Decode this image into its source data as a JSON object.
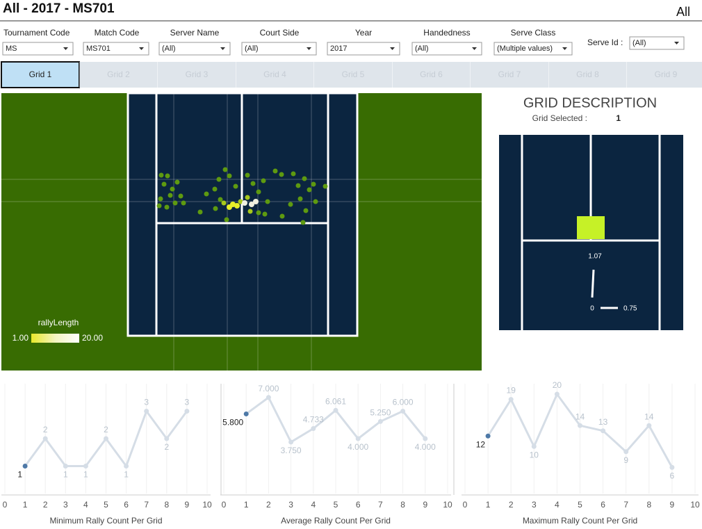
{
  "header": {
    "title": "All -  2017 -  MS701",
    "right": "All"
  },
  "filters": [
    {
      "label": "Tournament Code",
      "value": "MS"
    },
    {
      "label": "Match Code",
      "value": "MS701"
    },
    {
      "label": "Server Name",
      "value": "(All)"
    },
    {
      "label": "Court Side",
      "value": "(All)"
    },
    {
      "label": "Year",
      "value": "2017"
    },
    {
      "label": "Handedness",
      "value": "(All)"
    },
    {
      "label": "Serve Class",
      "value": "(Multiple values)"
    },
    {
      "label": "Serve Id :",
      "value": "(All)"
    }
  ],
  "tabs": [
    "Grid 1",
    "Grid 2",
    "Grid 3",
    "Grid 4",
    "Grid 5",
    "Grid 6",
    "Grid 7",
    "Grid 8",
    "Grid 9"
  ],
  "legend": {
    "title": "rallyLength",
    "min": "1.00",
    "max": "20.00"
  },
  "grid_description": {
    "title": "GRID DESCRIPTION",
    "selected_label": "Grid Selected :",
    "selected": "1",
    "labels": [
      "1.07",
      "0",
      "0.75"
    ]
  },
  "chart_data": [
    {
      "type": "line",
      "title": "Minimum Rally Count Per Grid",
      "x": [
        1,
        2,
        3,
        4,
        5,
        6,
        7,
        8,
        9
      ],
      "series": [
        {
          "name": null,
          "color": "#d5dde6",
          "values": [
            1,
            2,
            1,
            1,
            2,
            1,
            3,
            2,
            3
          ]
        }
      ],
      "highlight_x": 1,
      "highlight_color": "#4e79a7",
      "xlim": [
        0,
        10
      ],
      "xticks": [
        0,
        1,
        2,
        3,
        4,
        5,
        6,
        7,
        8,
        9,
        10
      ],
      "ylim": [
        0,
        4
      ]
    },
    {
      "type": "line",
      "title": "Average Rally Count Per Grid",
      "x": [
        1,
        2,
        3,
        4,
        5,
        6,
        7,
        8,
        9
      ],
      "series": [
        {
          "name": null,
          "color": "#d5dde6",
          "values": [
            5.8,
            7.0,
            3.75,
            4.733,
            6.061,
            4.0,
            5.25,
            6.0,
            4.0
          ],
          "value_labels": [
            "5.800",
            "7.000",
            "3.750",
            "4.733",
            "6.061",
            "4.000",
            "5.250",
            "6.000",
            "4.000"
          ]
        }
      ],
      "highlight_x": 1,
      "highlight_color": "#4e79a7",
      "xlim": [
        0,
        10
      ],
      "xticks": [
        0,
        1,
        2,
        3,
        4,
        5,
        6,
        7,
        8,
        9,
        10
      ],
      "ylim": [
        0,
        8
      ]
    },
    {
      "type": "line",
      "title": "Maximum Rally Count Per Grid",
      "x": [
        1,
        2,
        3,
        4,
        5,
        6,
        7,
        8,
        9
      ],
      "series": [
        {
          "name": null,
          "color": "#d5dde6",
          "values": [
            12,
            19,
            10,
            20,
            14,
            13,
            9,
            14,
            6
          ]
        }
      ],
      "highlight_x": 1,
      "highlight_color": "#4e79a7",
      "xlim": [
        0,
        10
      ],
      "xticks": [
        0,
        1,
        2,
        3,
        4,
        5,
        6,
        7,
        8,
        9,
        10
      ],
      "ylim": [
        1,
        22
      ]
    }
  ]
}
